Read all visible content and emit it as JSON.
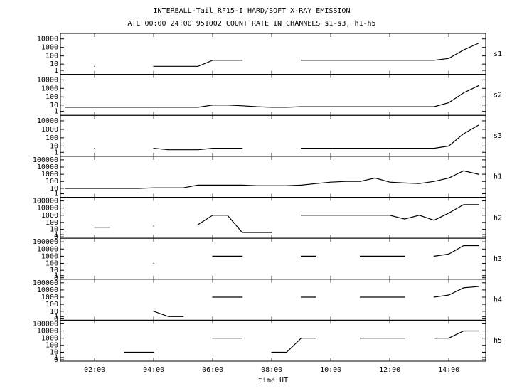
{
  "chart_data": {
    "type": "line",
    "title": "INTERBALL-Tail RF15-I HARD/SOFT X-RAY EMISSION",
    "subtitle": "ATL 00:00 24:00 951002  COUNT RATE IN CHANNELS s1-s3, h1-h5",
    "xlabel": "time UT",
    "yscale": "log1p",
    "color": "#000000",
    "x": [
      1,
      1.5,
      2,
      2.5,
      3,
      3.5,
      4,
      4.5,
      5,
      5.5,
      6,
      6.5,
      7,
      7.5,
      8,
      8.5,
      9,
      9.5,
      10,
      10.5,
      11,
      11.5,
      12,
      12.5,
      13,
      13.5,
      14,
      14.5,
      15
    ],
    "xlim": [
      0.84,
      15.25
    ],
    "xticks": [
      {
        "value": 2,
        "label": "02:00"
      },
      {
        "value": 4,
        "label": "04:00"
      },
      {
        "value": 6,
        "label": "06:00"
      },
      {
        "value": 8,
        "label": "08:00"
      },
      {
        "value": 10,
        "label": "10:00"
      },
      {
        "value": 12,
        "label": "12:00"
      },
      {
        "value": 14,
        "label": "14:00"
      }
    ],
    "panels": [
      {
        "name": "s1",
        "ylim": [
          0,
          30000
        ],
        "yticks": [
          1,
          10,
          100,
          1000,
          10000
        ],
        "values": [
          null,
          null,
          5,
          null,
          null,
          null,
          5,
          5,
          5,
          5,
          30,
          30,
          30,
          null,
          null,
          null,
          30,
          30,
          30,
          30,
          30,
          30,
          30,
          30,
          30,
          30,
          50,
          500,
          3000
        ]
      },
      {
        "name": "s2",
        "ylim": [
          0,
          30000
        ],
        "yticks": [
          1,
          10,
          100,
          1000,
          10000
        ],
        "values": [
          5,
          5,
          5,
          5,
          5,
          5,
          5,
          5,
          5,
          5,
          10,
          10,
          8,
          6,
          5,
          5,
          6,
          6,
          6,
          6,
          6,
          6,
          6,
          6,
          6,
          6,
          20,
          300,
          2000
        ]
      },
      {
        "name": "s3",
        "ylim": [
          0,
          30000
        ],
        "yticks": [
          1,
          10,
          100,
          1000,
          10000
        ],
        "values": [
          null,
          null,
          5,
          null,
          null,
          null,
          5,
          3,
          3,
          3,
          5,
          5,
          5,
          null,
          null,
          null,
          5,
          5,
          5,
          5,
          5,
          5,
          5,
          5,
          5,
          5,
          10,
          300,
          3000
        ]
      },
      {
        "name": "h1",
        "ylim": [
          0,
          200000
        ],
        "yticks": [
          1,
          10,
          100,
          1000,
          10000,
          100000
        ],
        "values": [
          10,
          10,
          10,
          10,
          10,
          10,
          12,
          12,
          12,
          30,
          30,
          30,
          30,
          25,
          25,
          25,
          30,
          50,
          80,
          100,
          100,
          300,
          80,
          60,
          50,
          100,
          300,
          3000,
          1000
        ]
      },
      {
        "name": "h2",
        "ylim": [
          0,
          200000
        ],
        "yticks": [
          0,
          1,
          10,
          100,
          1000,
          10000,
          100000
        ],
        "values": [
          null,
          null,
          20,
          20,
          null,
          null,
          30,
          null,
          null,
          50,
          1000,
          1000,
          3,
          3,
          3,
          null,
          1000,
          1000,
          1000,
          1000,
          1000,
          1000,
          1000,
          300,
          1000,
          200,
          2000,
          30000,
          30000
        ]
      },
      {
        "name": "h3",
        "ylim": [
          0,
          200000
        ],
        "yticks": [
          0,
          1,
          10,
          100,
          1000,
          10000,
          100000
        ],
        "values": [
          null,
          null,
          null,
          null,
          null,
          null,
          100,
          null,
          null,
          null,
          1000,
          1000,
          1000,
          null,
          null,
          null,
          1000,
          1000,
          null,
          null,
          1000,
          1000,
          1000,
          1000,
          null,
          1000,
          2000,
          30000,
          30000
        ]
      },
      {
        "name": "h4",
        "ylim": [
          0,
          200000
        ],
        "yticks": [
          0,
          1,
          10,
          100,
          1000,
          10000,
          100000
        ],
        "values": [
          null,
          null,
          null,
          null,
          null,
          null,
          10,
          1,
          1,
          null,
          1000,
          1000,
          1000,
          null,
          null,
          null,
          1000,
          1000,
          null,
          null,
          1000,
          1000,
          1000,
          1000,
          null,
          1000,
          2000,
          20000,
          30000
        ]
      },
      {
        "name": "h5",
        "ylim": [
          0,
          200000
        ],
        "yticks": [
          0,
          1,
          10,
          100,
          1000,
          10000,
          100000
        ],
        "values": [
          null,
          null,
          null,
          null,
          10,
          10,
          10,
          null,
          null,
          null,
          1000,
          1000,
          1000,
          null,
          10,
          10,
          1000,
          1000,
          null,
          null,
          1000,
          1000,
          1000,
          1000,
          null,
          1000,
          1000,
          10000,
          10000
        ]
      }
    ]
  }
}
